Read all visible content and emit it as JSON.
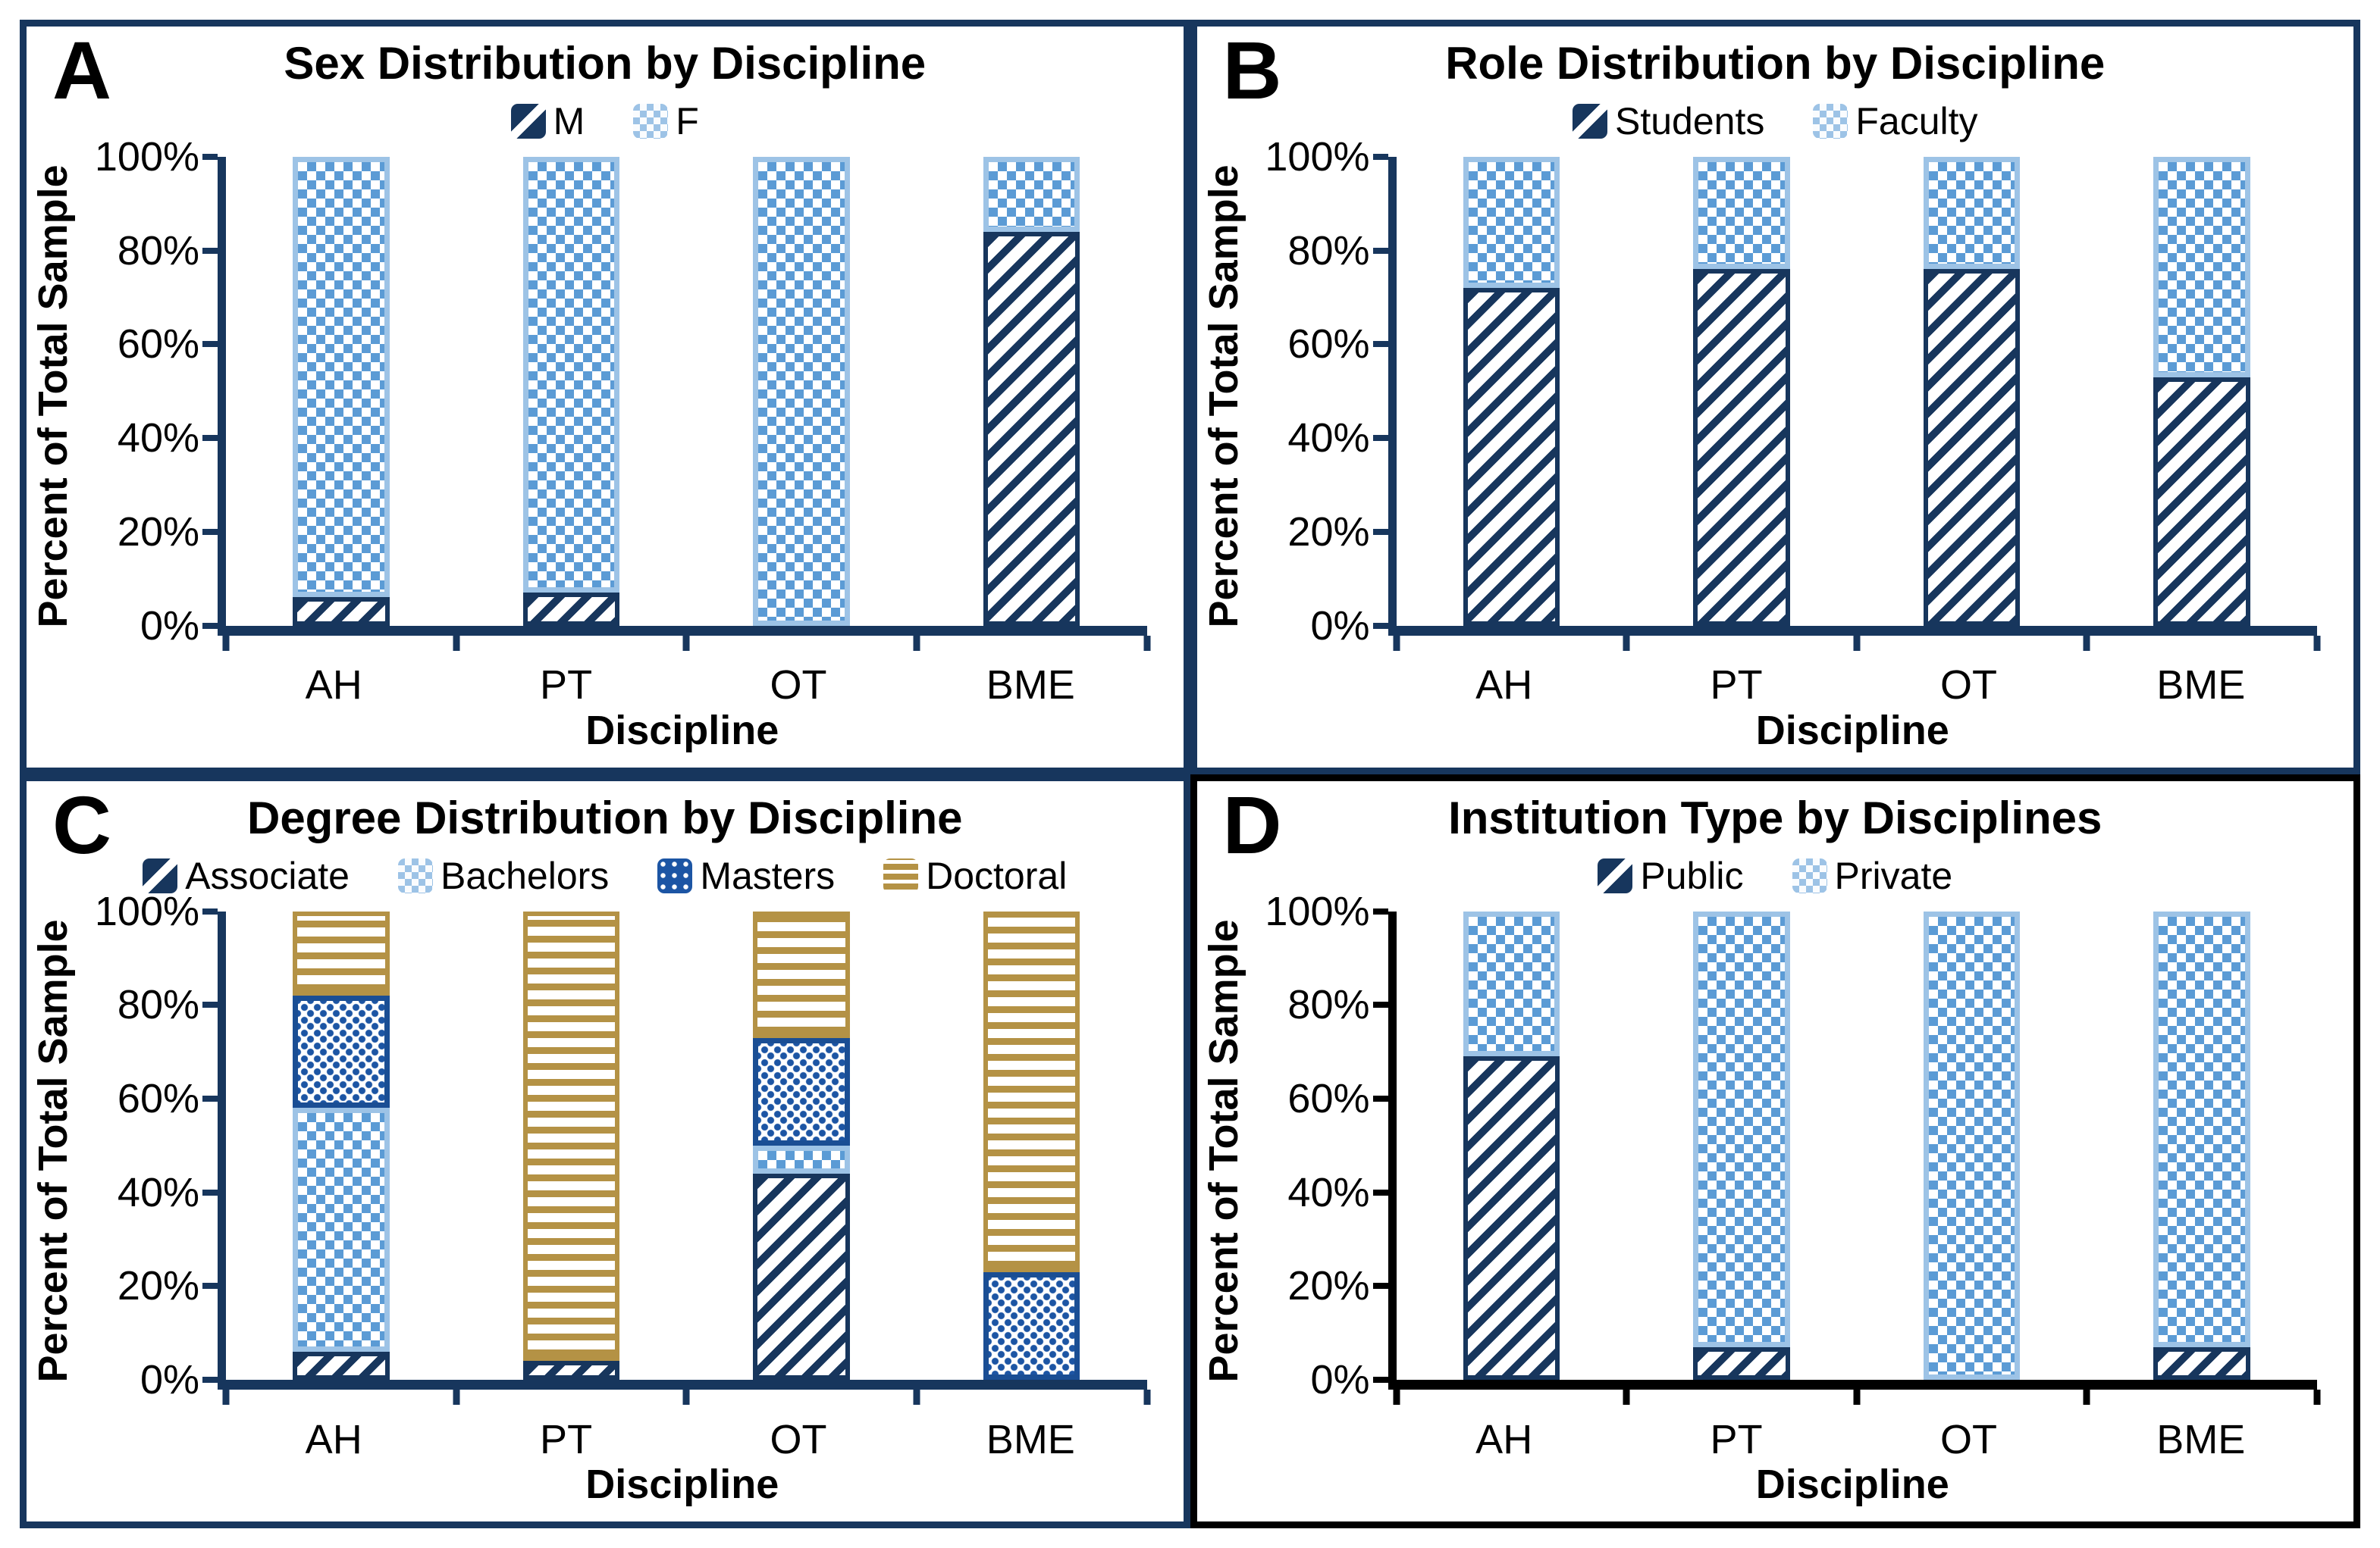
{
  "figure": {
    "background": "#FFFFFF",
    "description": "Four-panel stacked bar figure of sample demographics"
  },
  "colors": {
    "navy": "#17365D",
    "light_blue": "#9DC3E6",
    "checker_blue": "#5B9BD5",
    "masters_blue": "#1C55A4",
    "masters_border": "#1A4E94",
    "gold": "#B49245",
    "panel_frame_abc": "#17365D",
    "panel_frame_d": "#000000",
    "text": "#000000",
    "background": "#FFFFFF"
  },
  "chart_data": [
    {
      "type": "bar",
      "stacked": true,
      "letter": "A",
      "title": "Sex Distribution by Discipline",
      "xlabel": "Discipline",
      "ylabel": "Percent of Total Sample",
      "categories": [
        "AH",
        "PT",
        "OT",
        "BME"
      ],
      "series": [
        {
          "name": "M",
          "pattern": "diagonal",
          "values": [
            6,
            7,
            0,
            84
          ]
        },
        {
          "name": "F",
          "pattern": "checker",
          "values": [
            94,
            93,
            100,
            16
          ]
        }
      ],
      "ylim": [
        0,
        100
      ],
      "yticks": [
        0,
        20,
        40,
        60,
        80,
        100
      ],
      "ytick_labels": [
        "0%",
        "20%",
        "40%",
        "60%",
        "80%",
        "100%"
      ],
      "legend_position": "top",
      "grid": false,
      "frame_color": "#17365D",
      "axis_color": "#17365D"
    },
    {
      "type": "bar",
      "stacked": true,
      "letter": "B",
      "title": "Role Distribution by Discipline",
      "xlabel": "Discipline",
      "ylabel": "Percent of Total Sample",
      "categories": [
        "AH",
        "PT",
        "OT",
        "BME"
      ],
      "series": [
        {
          "name": "Students",
          "pattern": "diagonal",
          "values": [
            72,
            76,
            76,
            53
          ]
        },
        {
          "name": "Faculty",
          "pattern": "checker",
          "values": [
            28,
            24,
            24,
            47
          ]
        }
      ],
      "ylim": [
        0,
        100
      ],
      "yticks": [
        0,
        20,
        40,
        60,
        80,
        100
      ],
      "ytick_labels": [
        "0%",
        "20%",
        "40%",
        "60%",
        "80%",
        "100%"
      ],
      "legend_position": "top",
      "grid": false,
      "frame_color": "#17365D",
      "axis_color": "#17365D"
    },
    {
      "type": "bar",
      "stacked": true,
      "letter": "C",
      "title": "Degree Distribution by Discipline",
      "xlabel": "Discipline",
      "ylabel": "Percent of Total Sample",
      "categories": [
        "AH",
        "PT",
        "OT",
        "BME"
      ],
      "series": [
        {
          "name": "Associate",
          "pattern": "diagonal",
          "values": [
            6,
            4,
            44,
            0
          ]
        },
        {
          "name": "Bachelors",
          "pattern": "checker",
          "values": [
            52,
            0,
            6,
            0
          ]
        },
        {
          "name": "Masters",
          "pattern": "dots",
          "values": [
            24,
            0,
            23,
            23
          ]
        },
        {
          "name": "Doctoral",
          "pattern": "hlines",
          "values": [
            18,
            96,
            27,
            77
          ]
        }
      ],
      "ylim": [
        0,
        100
      ],
      "yticks": [
        0,
        20,
        40,
        60,
        80,
        100
      ],
      "ytick_labels": [
        "0%",
        "20%",
        "40%",
        "60%",
        "80%",
        "100%"
      ],
      "legend_position": "top",
      "grid": false,
      "frame_color": "#17365D",
      "axis_color": "#17365D"
    },
    {
      "type": "bar",
      "stacked": true,
      "letter": "D",
      "title": "Institution Type by Disciplines",
      "xlabel": "Discipline",
      "ylabel": "Percent of Total Sample",
      "categories": [
        "AH",
        "PT",
        "OT",
        "BME"
      ],
      "series": [
        {
          "name": "Public",
          "pattern": "diagonal",
          "values": [
            69,
            7,
            0,
            7
          ]
        },
        {
          "name": "Private",
          "pattern": "checker",
          "values": [
            31,
            93,
            100,
            93
          ]
        }
      ],
      "ylim": [
        0,
        100
      ],
      "yticks": [
        0,
        20,
        40,
        60,
        80,
        100
      ],
      "ytick_labels": [
        "0%",
        "20%",
        "40%",
        "60%",
        "80%",
        "100%"
      ],
      "legend_position": "top",
      "grid": false,
      "frame_color": "#000000",
      "axis_color": "#000000"
    }
  ]
}
